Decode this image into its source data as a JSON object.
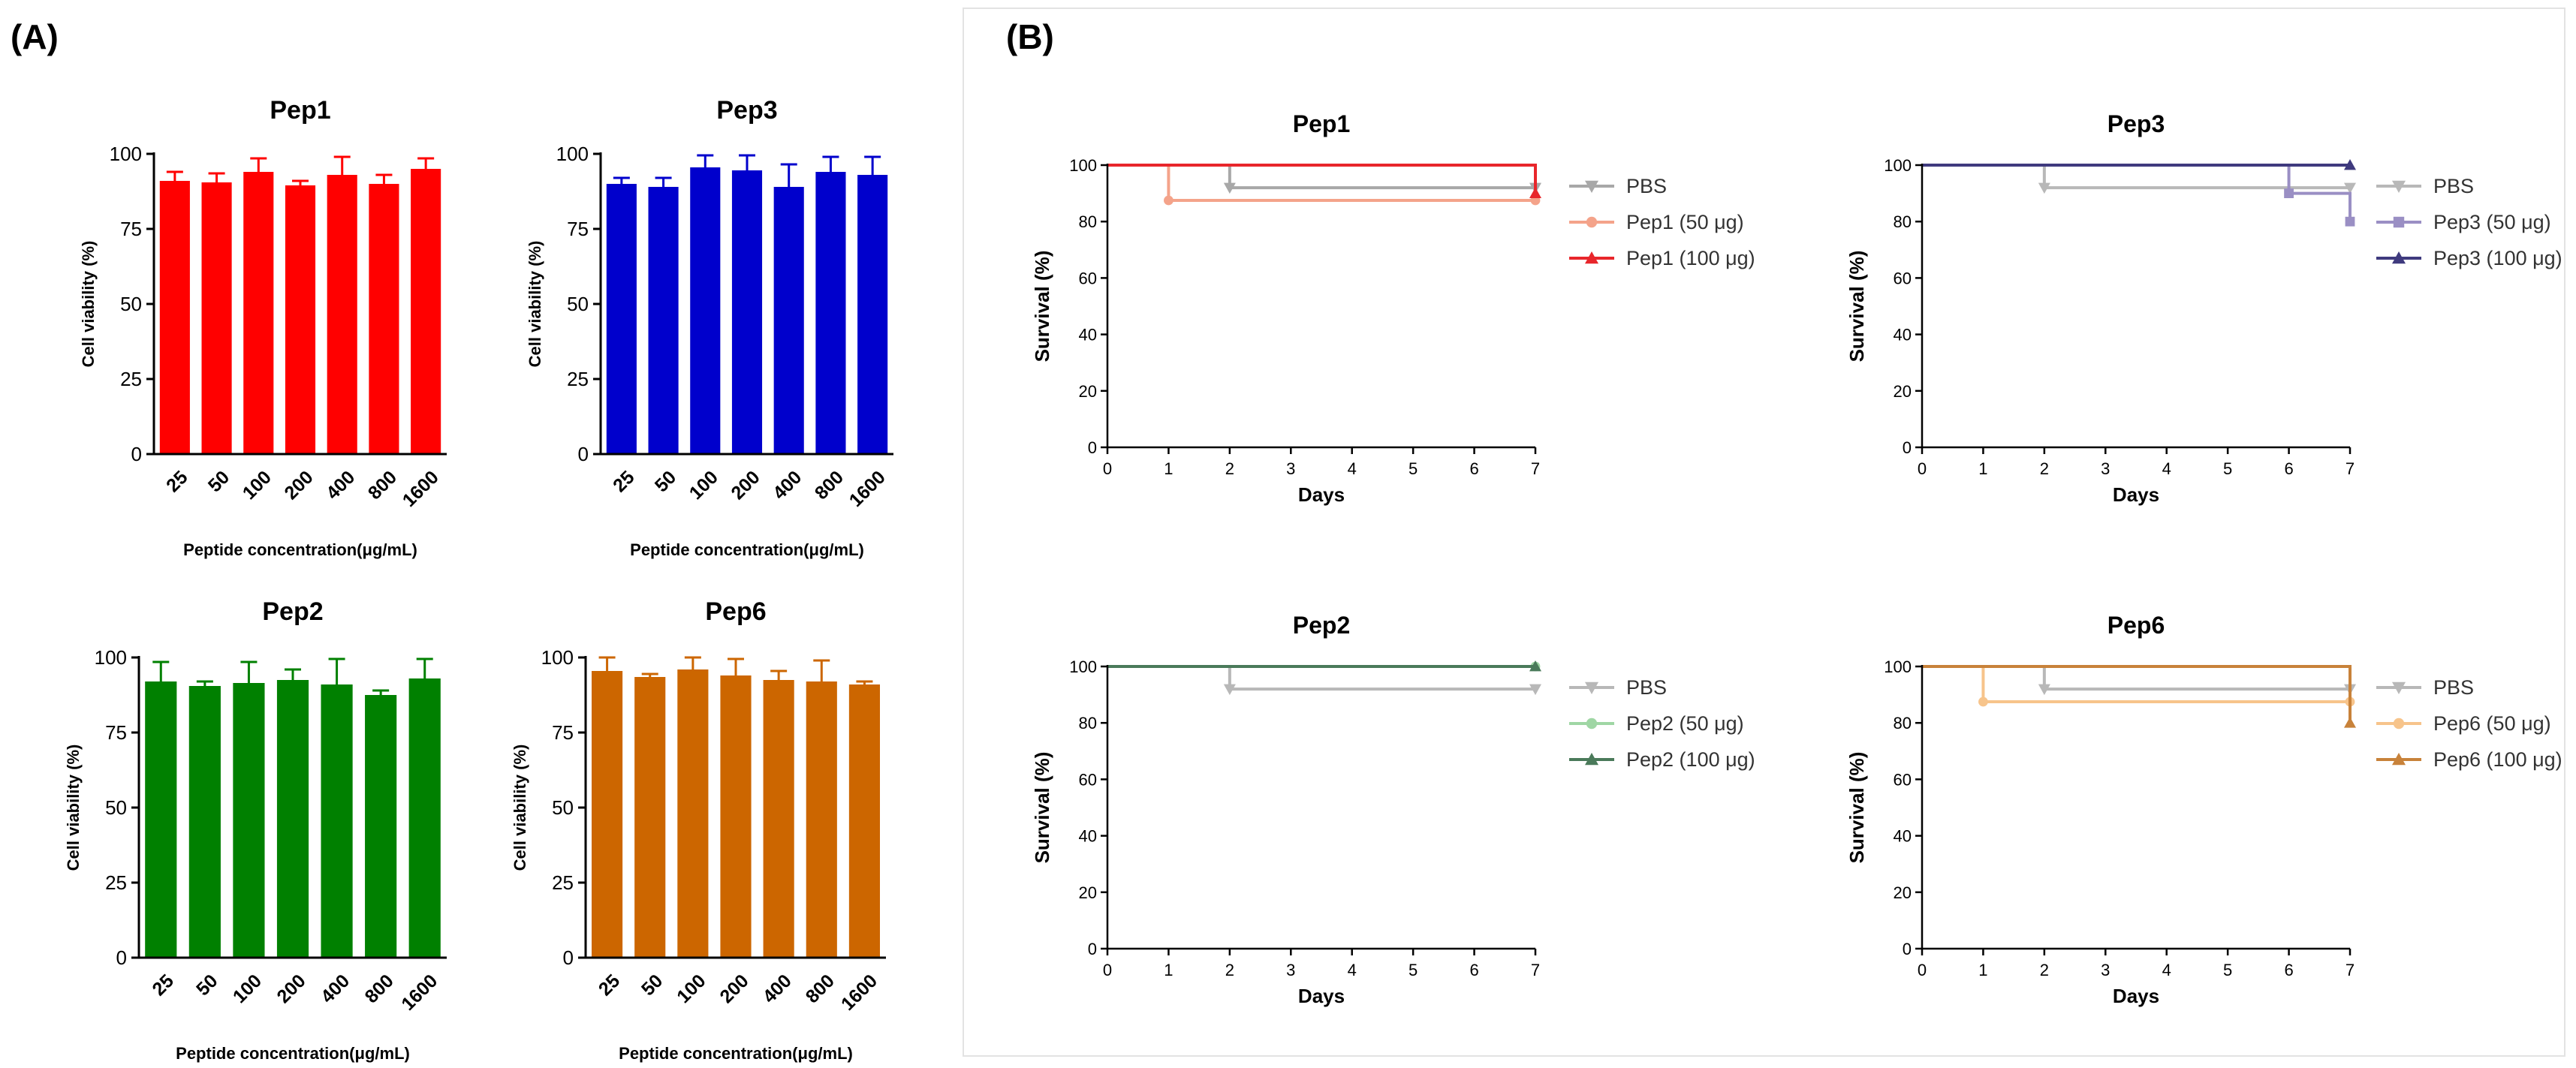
{
  "panels": {
    "a": "(A)",
    "b": "(B)"
  },
  "chart_data": [
    {
      "id": "viab-pep1",
      "type": "bar",
      "title": "Pep1",
      "xlabel": "Peptide concentration(μg/mL)",
      "ylabel": "Cell viability (%)",
      "categories": [
        "25",
        "50",
        "100",
        "200",
        "400",
        "800",
        "1600"
      ],
      "values": [
        91,
        90.5,
        94,
        89.5,
        93,
        90,
        95
      ],
      "errors": [
        3,
        3,
        4.5,
        1.5,
        6,
        3,
        3.5
      ],
      "ylim": [
        0,
        100
      ],
      "yticks": [
        0,
        25,
        50,
        75,
        100
      ],
      "color": "#ff0000"
    },
    {
      "id": "viab-pep3",
      "type": "bar",
      "title": "Pep3",
      "xlabel": "Peptide concentration(μg/mL)",
      "ylabel": "Cell viability (%)",
      "categories": [
        "25",
        "50",
        "100",
        "200",
        "400",
        "800",
        "1600"
      ],
      "values": [
        90,
        89,
        95.5,
        94.5,
        89,
        94,
        93
      ],
      "errors": [
        2,
        3,
        4,
        5,
        7.5,
        5,
        6
      ],
      "ylim": [
        0,
        100
      ],
      "yticks": [
        0,
        25,
        50,
        75,
        100
      ],
      "color": "#0000cc"
    },
    {
      "id": "viab-pep2",
      "type": "bar",
      "title": "Pep2",
      "xlabel": "Peptide concentration(μg/mL)",
      "ylabel": "Cell viability (%)",
      "categories": [
        "25",
        "50",
        "100",
        "200",
        "400",
        "800",
        "1600"
      ],
      "values": [
        92,
        90.5,
        91.5,
        92.5,
        91,
        87.5,
        93
      ],
      "errors": [
        6.5,
        1.5,
        7,
        3.5,
        8.5,
        1.5,
        6.5
      ],
      "ylim": [
        0,
        100
      ],
      "yticks": [
        0,
        25,
        50,
        75,
        100
      ],
      "color": "#008000"
    },
    {
      "id": "viab-pep6",
      "type": "bar",
      "title": "Pep6",
      "xlabel": "Peptide concentration(μg/mL)",
      "ylabel": "Cell viability (%)",
      "categories": [
        "25",
        "50",
        "100",
        "200",
        "400",
        "800",
        "1600"
      ],
      "values": [
        95.5,
        93.5,
        96,
        94,
        92.5,
        92,
        91
      ],
      "errors": [
        4.5,
        1,
        4,
        5.5,
        3,
        7,
        1
      ],
      "ylim": [
        0,
        100
      ],
      "yticks": [
        0,
        25,
        50,
        75,
        100
      ],
      "color": "#cc6600"
    },
    {
      "id": "surv-pep1",
      "type": "line",
      "title": "Pep1",
      "xlabel": "Days",
      "ylabel": "Survival (%)",
      "xlim": [
        0,
        7
      ],
      "ylim": [
        0,
        100
      ],
      "xticks": [
        0,
        1,
        2,
        3,
        4,
        5,
        6,
        7
      ],
      "yticks": [
        0,
        20,
        40,
        60,
        80,
        100
      ],
      "series": [
        {
          "name": "PBS",
          "color": "#a8a8a8",
          "marker": "down",
          "steps": [
            [
              0,
              100
            ],
            [
              2,
              92
            ],
            [
              7,
              92
            ]
          ],
          "markers": [
            [
              2,
              92
            ],
            [
              7,
              92
            ]
          ]
        },
        {
          "name": "Pep1 (50 μg)",
          "color": "#f4a38a",
          "marker": "circle",
          "steps": [
            [
              0,
              100
            ],
            [
              1,
              87.5
            ],
            [
              7,
              87.5
            ]
          ],
          "markers": [
            [
              1,
              87.5
            ],
            [
              7,
              87.5
            ]
          ]
        },
        {
          "name": "Pep1 (100 μg)",
          "color": "#e8262b",
          "marker": "up",
          "steps": [
            [
              0,
              100
            ],
            [
              7,
              100
            ],
            [
              7,
              90
            ]
          ],
          "markers": [
            [
              7,
              90
            ]
          ]
        }
      ]
    },
    {
      "id": "surv-pep3",
      "type": "line",
      "title": "Pep3",
      "xlabel": "Days",
      "ylabel": "Survival (%)",
      "xlim": [
        0,
        7
      ],
      "ylim": [
        0,
        100
      ],
      "xticks": [
        0,
        1,
        2,
        3,
        4,
        5,
        6,
        7
      ],
      "yticks": [
        0,
        20,
        40,
        60,
        80,
        100
      ],
      "series": [
        {
          "name": "PBS",
          "color": "#b8b8b8",
          "marker": "down",
          "steps": [
            [
              0,
              100
            ],
            [
              2,
              92
            ],
            [
              7,
              92
            ]
          ],
          "markers": [
            [
              2,
              92
            ],
            [
              7,
              92
            ]
          ]
        },
        {
          "name": "Pep3 (50 μg)",
          "color": "#9a8fc4",
          "marker": "square",
          "steps": [
            [
              0,
              100
            ],
            [
              6,
              90
            ],
            [
              7,
              80
            ]
          ],
          "markers": [
            [
              6,
              90
            ],
            [
              7,
              80
            ]
          ]
        },
        {
          "name": "Pep3 (100 μg)",
          "color": "#3f3a7e",
          "marker": "up",
          "steps": [
            [
              0,
              100
            ],
            [
              7,
              100
            ]
          ],
          "markers": [
            [
              7,
              100
            ]
          ]
        }
      ]
    },
    {
      "id": "surv-pep2",
      "type": "line",
      "title": "Pep2",
      "xlabel": "Days",
      "ylabel": "Survival (%)",
      "xlim": [
        0,
        7
      ],
      "ylim": [
        0,
        100
      ],
      "xticks": [
        0,
        1,
        2,
        3,
        4,
        5,
        6,
        7
      ],
      "yticks": [
        0,
        20,
        40,
        60,
        80,
        100
      ],
      "series": [
        {
          "name": "PBS",
          "color": "#b8b8b8",
          "marker": "down",
          "steps": [
            [
              0,
              100
            ],
            [
              2,
              92
            ],
            [
              7,
              92
            ]
          ],
          "markers": [
            [
              2,
              92
            ],
            [
              7,
              92
            ]
          ]
        },
        {
          "name": "Pep2 (50 μg)",
          "color": "#9fd6a4",
          "marker": "circle",
          "steps": [
            [
              0,
              100
            ],
            [
              7,
              100
            ]
          ],
          "markers": [
            [
              7,
              100
            ]
          ]
        },
        {
          "name": "Pep2 (100 μg)",
          "color": "#4a7a5a",
          "marker": "up",
          "steps": [
            [
              0,
              100
            ],
            [
              7,
              100
            ]
          ],
          "markers": [
            [
              7,
              100
            ]
          ]
        }
      ]
    },
    {
      "id": "surv-pep6",
      "type": "line",
      "title": "Pep6",
      "xlabel": "Days",
      "ylabel": "Survival (%)",
      "xlim": [
        0,
        7
      ],
      "ylim": [
        0,
        100
      ],
      "xticks": [
        0,
        1,
        2,
        3,
        4,
        5,
        6,
        7
      ],
      "yticks": [
        0,
        20,
        40,
        60,
        80,
        100
      ],
      "series": [
        {
          "name": "PBS",
          "color": "#b8b8b8",
          "marker": "down",
          "steps": [
            [
              0,
              100
            ],
            [
              2,
              92
            ],
            [
              7,
              92
            ]
          ],
          "markers": [
            [
              2,
              92
            ],
            [
              7,
              92
            ]
          ]
        },
        {
          "name": "Pep6 (50 μg)",
          "color": "#f7c48b",
          "marker": "circle",
          "steps": [
            [
              0,
              100
            ],
            [
              1,
              87.5
            ],
            [
              7,
              87.5
            ]
          ],
          "markers": [
            [
              1,
              87.5
            ],
            [
              7,
              87.5
            ]
          ]
        },
        {
          "name": "Pep6 (100 μg)",
          "color": "#c8823a",
          "marker": "up",
          "steps": [
            [
              0,
              100
            ],
            [
              7,
              100
            ],
            [
              7,
              80
            ]
          ],
          "markers": [
            [
              7,
              80
            ]
          ]
        }
      ]
    }
  ]
}
